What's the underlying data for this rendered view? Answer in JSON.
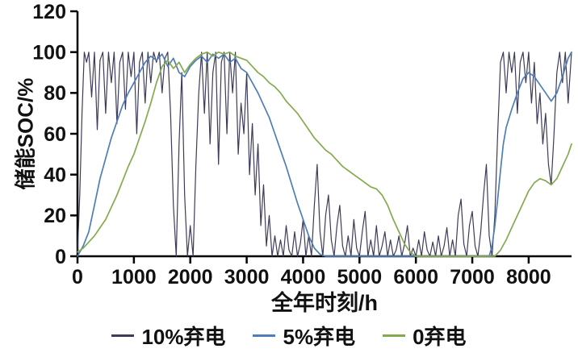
{
  "chart_data": {
    "type": "line",
    "title": "",
    "xlabel": "全年时刻/h",
    "ylabel": "储能SOC/%",
    "xlim": [
      0,
      8760
    ],
    "ylim": [
      0,
      120
    ],
    "x_ticks": [
      0,
      1000,
      2000,
      3000,
      4000,
      5000,
      6000,
      7000,
      8000
    ],
    "y_ticks": [
      0,
      20,
      40,
      60,
      80,
      100,
      120
    ],
    "grid": false,
    "legend_position": "bottom",
    "colors": {
      "axis": "#000000",
      "text": "#111111"
    },
    "series": [
      {
        "name": "10%弃电",
        "color": "#3c3c5a",
        "stroke_width": 1.2,
        "points": [
          [
            0,
            2
          ],
          [
            40,
            30
          ],
          [
            80,
            70
          ],
          [
            120,
            100
          ],
          [
            160,
            95
          ],
          [
            200,
            100
          ],
          [
            250,
            78
          ],
          [
            300,
            100
          ],
          [
            350,
            62
          ],
          [
            400,
            96
          ],
          [
            450,
            100
          ],
          [
            500,
            70
          ],
          [
            550,
            100
          ],
          [
            600,
            85
          ],
          [
            650,
            100
          ],
          [
            700,
            65
          ],
          [
            750,
            95
          ],
          [
            800,
            100
          ],
          [
            850,
            72
          ],
          [
            900,
            100
          ],
          [
            950,
            88
          ],
          [
            1000,
            100
          ],
          [
            1050,
            60
          ],
          [
            1100,
            95
          ],
          [
            1150,
            100
          ],
          [
            1200,
            75
          ],
          [
            1250,
            100
          ],
          [
            1300,
            85
          ],
          [
            1350,
            100
          ],
          [
            1400,
            95
          ],
          [
            1450,
            100
          ],
          [
            1500,
            80
          ],
          [
            1550,
            97
          ],
          [
            1600,
            100
          ],
          [
            1650,
            70
          ],
          [
            1700,
            25
          ],
          [
            1750,
            0
          ],
          [
            1800,
            55
          ],
          [
            1850,
            90
          ],
          [
            1900,
            30
          ],
          [
            1950,
            0
          ],
          [
            2000,
            15
          ],
          [
            2050,
            0
          ],
          [
            2100,
            45
          ],
          [
            2150,
            80
          ],
          [
            2200,
            100
          ],
          [
            2250,
            70
          ],
          [
            2300,
            100
          ],
          [
            2350,
            55
          ],
          [
            2400,
            90
          ],
          [
            2450,
            100
          ],
          [
            2500,
            45
          ],
          [
            2550,
            95
          ],
          [
            2600,
            100
          ],
          [
            2650,
            60
          ],
          [
            2700,
            100
          ],
          [
            2750,
            80
          ],
          [
            2800,
            100
          ],
          [
            2850,
            50
          ],
          [
            2900,
            75
          ],
          [
            2950,
            60
          ],
          [
            3000,
            90
          ],
          [
            3050,
            40
          ],
          [
            3100,
            65
          ],
          [
            3150,
            30
          ],
          [
            3200,
            55
          ],
          [
            3250,
            15
          ],
          [
            3300,
            35
          ],
          [
            3350,
            5
          ],
          [
            3400,
            20
          ],
          [
            3450,
            0
          ],
          [
            3500,
            10
          ],
          [
            3550,
            0
          ],
          [
            3600,
            8
          ],
          [
            3650,
            0
          ],
          [
            3700,
            15
          ],
          [
            3750,
            3
          ],
          [
            3800,
            0
          ],
          [
            3850,
            12
          ],
          [
            3900,
            0
          ],
          [
            3950,
            6
          ],
          [
            4000,
            18
          ],
          [
            4050,
            0
          ],
          [
            4100,
            10
          ],
          [
            4150,
            0
          ],
          [
            4200,
            25
          ],
          [
            4250,
            45
          ],
          [
            4300,
            12
          ],
          [
            4350,
            0
          ],
          [
            4400,
            20
          ],
          [
            4450,
            30
          ],
          [
            4500,
            8
          ],
          [
            4550,
            0
          ],
          [
            4600,
            15
          ],
          [
            4650,
            25
          ],
          [
            4700,
            5
          ],
          [
            4750,
            0
          ],
          [
            4800,
            10
          ],
          [
            4850,
            0
          ],
          [
            4900,
            18
          ],
          [
            4950,
            4
          ],
          [
            5000,
            0
          ],
          [
            5050,
            12
          ],
          [
            5100,
            22
          ],
          [
            5150,
            0
          ],
          [
            5200,
            8
          ],
          [
            5250,
            0
          ],
          [
            5300,
            15
          ],
          [
            5350,
            0
          ],
          [
            5400,
            5
          ],
          [
            5450,
            12
          ],
          [
            5500,
            0
          ],
          [
            5550,
            8
          ],
          [
            5600,
            0
          ],
          [
            5650,
            3
          ],
          [
            5700,
            10
          ],
          [
            5750,
            0
          ],
          [
            5800,
            6
          ],
          [
            5850,
            15
          ],
          [
            5900,
            0
          ],
          [
            5950,
            4
          ],
          [
            6000,
            0
          ],
          [
            6050,
            8
          ],
          [
            6100,
            0
          ],
          [
            6150,
            12
          ],
          [
            6200,
            3
          ],
          [
            6250,
            0
          ],
          [
            6300,
            7
          ],
          [
            6350,
            0
          ],
          [
            6400,
            10
          ],
          [
            6450,
            0
          ],
          [
            6500,
            5
          ],
          [
            6550,
            14
          ],
          [
            6600,
            0
          ],
          [
            6650,
            8
          ],
          [
            6700,
            0
          ],
          [
            6750,
            20
          ],
          [
            6800,
            28
          ],
          [
            6850,
            6
          ],
          [
            6900,
            0
          ],
          [
            6950,
            15
          ],
          [
            7000,
            22
          ],
          [
            7050,
            5
          ],
          [
            7100,
            0
          ],
          [
            7150,
            12
          ],
          [
            7200,
            30
          ],
          [
            7250,
            45
          ],
          [
            7300,
            10
          ],
          [
            7350,
            0
          ],
          [
            7400,
            20
          ],
          [
            7450,
            60
          ],
          [
            7500,
            95
          ],
          [
            7550,
            100
          ],
          [
            7600,
            80
          ],
          [
            7650,
            100
          ],
          [
            7700,
            90
          ],
          [
            7750,
            100
          ],
          [
            7800,
            70
          ],
          [
            7850,
            95
          ],
          [
            7900,
            100
          ],
          [
            7950,
            85
          ],
          [
            8000,
            100
          ],
          [
            8050,
            75
          ],
          [
            8100,
            95
          ],
          [
            8150,
            65
          ],
          [
            8200,
            80
          ],
          [
            8250,
            55
          ],
          [
            8300,
            70
          ],
          [
            8350,
            45
          ],
          [
            8400,
            35
          ],
          [
            8450,
            60
          ],
          [
            8500,
            90
          ],
          [
            8550,
            100
          ],
          [
            8600,
            85
          ],
          [
            8650,
            100
          ],
          [
            8700,
            75
          ],
          [
            8760,
            100
          ]
        ]
      },
      {
        "name": "5%弃电",
        "color": "#4f7db8",
        "stroke_width": 1.7,
        "points": [
          [
            0,
            0
          ],
          [
            100,
            5
          ],
          [
            200,
            12
          ],
          [
            300,
            25
          ],
          [
            400,
            38
          ],
          [
            500,
            48
          ],
          [
            600,
            58
          ],
          [
            700,
            66
          ],
          [
            800,
            74
          ],
          [
            900,
            80
          ],
          [
            1000,
            85
          ],
          [
            1100,
            90
          ],
          [
            1200,
            95
          ],
          [
            1300,
            98
          ],
          [
            1400,
            96
          ],
          [
            1500,
            99
          ],
          [
            1600,
            93
          ],
          [
            1700,
            97
          ],
          [
            1800,
            90
          ],
          [
            1900,
            88
          ],
          [
            2000,
            93
          ],
          [
            2100,
            96
          ],
          [
            2200,
            98
          ],
          [
            2300,
            95
          ],
          [
            2400,
            99
          ],
          [
            2500,
            97
          ],
          [
            2600,
            99
          ],
          [
            2700,
            95
          ],
          [
            2800,
            97
          ],
          [
            2900,
            92
          ],
          [
            3000,
            90
          ],
          [
            3100,
            85
          ],
          [
            3200,
            80
          ],
          [
            3300,
            74
          ],
          [
            3400,
            68
          ],
          [
            3500,
            60
          ],
          [
            3600,
            52
          ],
          [
            3700,
            44
          ],
          [
            3800,
            35
          ],
          [
            3900,
            26
          ],
          [
            4000,
            18
          ],
          [
            4100,
            10
          ],
          [
            4200,
            4
          ],
          [
            4300,
            1
          ],
          [
            4400,
            0
          ],
          [
            5000,
            0
          ],
          [
            5500,
            0
          ],
          [
            6000,
            0
          ],
          [
            6500,
            0
          ],
          [
            7000,
            0
          ],
          [
            7300,
            0
          ],
          [
            7350,
            5
          ],
          [
            7400,
            15
          ],
          [
            7450,
            28
          ],
          [
            7500,
            42
          ],
          [
            7550,
            55
          ],
          [
            7600,
            63
          ],
          [
            7700,
            72
          ],
          [
            7800,
            80
          ],
          [
            7900,
            87
          ],
          [
            8000,
            90
          ],
          [
            8100,
            88
          ],
          [
            8200,
            84
          ],
          [
            8300,
            80
          ],
          [
            8400,
            76
          ],
          [
            8500,
            80
          ],
          [
            8600,
            88
          ],
          [
            8700,
            97
          ],
          [
            8760,
            100
          ]
        ]
      },
      {
        "name": "0弃电",
        "color": "#85aa4e",
        "stroke_width": 1.7,
        "points": [
          [
            0,
            2
          ],
          [
            100,
            4
          ],
          [
            200,
            7
          ],
          [
            300,
            10
          ],
          [
            400,
            14
          ],
          [
            500,
            18
          ],
          [
            600,
            24
          ],
          [
            700,
            30
          ],
          [
            800,
            37
          ],
          [
            900,
            44
          ],
          [
            1000,
            50
          ],
          [
            1100,
            58
          ],
          [
            1200,
            66
          ],
          [
            1300,
            75
          ],
          [
            1400,
            85
          ],
          [
            1500,
            93
          ],
          [
            1600,
            96
          ],
          [
            1700,
            92
          ],
          [
            1800,
            95
          ],
          [
            1900,
            90
          ],
          [
            2000,
            94
          ],
          [
            2100,
            97
          ],
          [
            2200,
            99
          ],
          [
            2300,
            100
          ],
          [
            2400,
            98
          ],
          [
            2500,
            100
          ],
          [
            2600,
            99
          ],
          [
            2700,
            100
          ],
          [
            2800,
            98
          ],
          [
            2900,
            97
          ],
          [
            3000,
            96
          ],
          [
            3100,
            93
          ],
          [
            3200,
            90
          ],
          [
            3300,
            88
          ],
          [
            3400,
            85
          ],
          [
            3500,
            83
          ],
          [
            3600,
            80
          ],
          [
            3700,
            76
          ],
          [
            3800,
            73
          ],
          [
            3900,
            70
          ],
          [
            4000,
            66
          ],
          [
            4100,
            62
          ],
          [
            4200,
            58
          ],
          [
            4300,
            55
          ],
          [
            4400,
            52
          ],
          [
            4500,
            50
          ],
          [
            4600,
            47
          ],
          [
            4700,
            44
          ],
          [
            4800,
            42
          ],
          [
            4900,
            40
          ],
          [
            5000,
            38
          ],
          [
            5100,
            36
          ],
          [
            5200,
            34
          ],
          [
            5300,
            33
          ],
          [
            5400,
            30
          ],
          [
            5500,
            25
          ],
          [
            5600,
            18
          ],
          [
            5700,
            12
          ],
          [
            5800,
            6
          ],
          [
            5900,
            2
          ],
          [
            6000,
            0
          ],
          [
            6500,
            0
          ],
          [
            7000,
            0
          ],
          [
            7400,
            0
          ],
          [
            7500,
            3
          ],
          [
            7600,
            8
          ],
          [
            7700,
            14
          ],
          [
            7800,
            20
          ],
          [
            7900,
            26
          ],
          [
            8000,
            32
          ],
          [
            8100,
            36
          ],
          [
            8200,
            38
          ],
          [
            8300,
            37
          ],
          [
            8400,
            35
          ],
          [
            8500,
            38
          ],
          [
            8600,
            44
          ],
          [
            8700,
            50
          ],
          [
            8760,
            55
          ]
        ]
      }
    ]
  }
}
